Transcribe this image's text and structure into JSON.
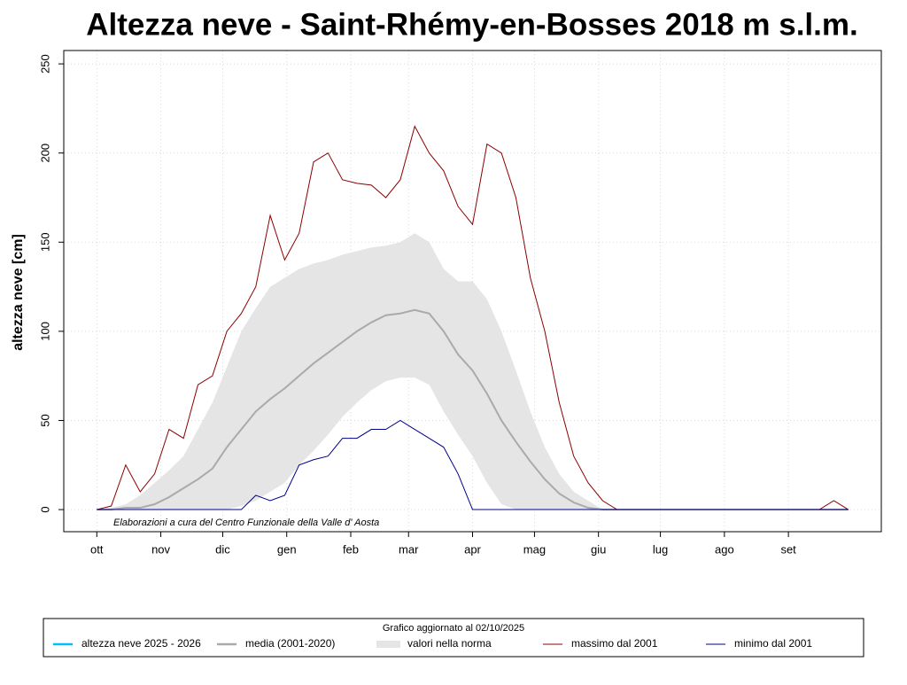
{
  "chart_data": {
    "type": "line",
    "title": "Altezza neve - Saint-Rhémy-en-Bosses 2018 m s.l.m.",
    "y_label": "altezza neve [cm]",
    "annotation": "Elaborazioni a cura del Centro Funzionale della Valle d' Aosta",
    "legend_title": "Grafico aggiornato al 02/10/2025",
    "grid": true,
    "legend": "bottom",
    "xlim": [
      -16,
      380
    ],
    "ylim": [
      -12.4,
      257.5
    ],
    "yticks": [
      0,
      50,
      100,
      150,
      200,
      250
    ],
    "xticks": [
      {
        "value": 0,
        "label": "ott"
      },
      {
        "value": 31,
        "label": "nov"
      },
      {
        "value": 61,
        "label": "dic"
      },
      {
        "value": 92,
        "label": "gen"
      },
      {
        "value": 123,
        "label": "feb"
      },
      {
        "value": 151,
        "label": "mar"
      },
      {
        "value": 182,
        "label": "apr"
      },
      {
        "value": 212,
        "label": "mag"
      },
      {
        "value": 243,
        "label": "giu"
      },
      {
        "value": 273,
        "label": "lug"
      },
      {
        "value": 304,
        "label": "ago"
      },
      {
        "value": 335,
        "label": "set"
      }
    ],
    "x": [
      0,
      7,
      14,
      21,
      28,
      35,
      42,
      49,
      56,
      63,
      70,
      77,
      84,
      91,
      98,
      105,
      112,
      119,
      126,
      133,
      140,
      147,
      154,
      161,
      168,
      175,
      182,
      189,
      196,
      203,
      210,
      217,
      224,
      231,
      238,
      245,
      252,
      259,
      266,
      273,
      280,
      287,
      294,
      301,
      308,
      315,
      322,
      329,
      336,
      343,
      350,
      357,
      364
    ],
    "series": [
      {
        "name": "altezza neve  2025 - 2026",
        "color": "#00bfff",
        "kind": "line",
        "x": [
          0,
          1
        ],
        "values": [
          0,
          0
        ]
      },
      {
        "name": "media (2001-2020)",
        "color": "#aaaaaa",
        "kind": "line",
        "values": [
          0,
          0,
          1,
          1,
          3,
          7,
          12,
          17,
          23,
          35,
          45,
          55,
          62,
          68,
          75,
          82,
          88,
          94,
          100,
          105,
          109,
          110,
          112,
          110,
          100,
          87,
          78,
          65,
          50,
          38,
          27,
          17,
          9,
          4,
          1,
          0,
          0,
          0,
          0,
          0,
          0,
          0,
          0,
          0,
          0,
          0,
          0,
          0,
          0,
          0,
          0,
          0,
          0
        ]
      },
      {
        "name": "valori nella norma",
        "color": "#e5e5e5",
        "kind": "band",
        "low": [
          0,
          0,
          0,
          0,
          0,
          0,
          0,
          0,
          0,
          0,
          2,
          5,
          10,
          15,
          25,
          33,
          42,
          52,
          60,
          67,
          72,
          74,
          74,
          70,
          55,
          42,
          30,
          15,
          3,
          0,
          0,
          0,
          0,
          0,
          0,
          0,
          0,
          0,
          0,
          0,
          0,
          0,
          0,
          0,
          0,
          0,
          0,
          0,
          0,
          0,
          0,
          0,
          0
        ],
        "high": [
          0,
          1,
          3,
          8,
          15,
          22,
          30,
          45,
          60,
          80,
          100,
          113,
          125,
          130,
          135,
          138,
          140,
          143,
          145,
          147,
          148,
          150,
          155,
          150,
          135,
          128,
          128,
          118,
          100,
          78,
          55,
          35,
          20,
          10,
          5,
          0,
          0,
          0,
          0,
          0,
          0,
          0,
          0,
          0,
          0,
          0,
          0,
          0,
          0,
          0,
          0,
          0,
          0
        ]
      },
      {
        "name": "massimo dal 2001",
        "color": "#8b0000",
        "kind": "line",
        "values": [
          0,
          2,
          25,
          10,
          20,
          45,
          40,
          70,
          75,
          100,
          110,
          125,
          165,
          140,
          155,
          195,
          200,
          185,
          183,
          182,
          175,
          185,
          215,
          200,
          190,
          170,
          160,
          205,
          200,
          175,
          130,
          100,
          60,
          30,
          15,
          5,
          0,
          0,
          0,
          0,
          0,
          0,
          0,
          0,
          0,
          0,
          0,
          0,
          0,
          0,
          0,
          5,
          0
        ]
      },
      {
        "name": "minimo dal 2001",
        "color": "#00008b",
        "kind": "line",
        "values": [
          0,
          0,
          0,
          0,
          0,
          0,
          0,
          0,
          0,
          0,
          0,
          8,
          5,
          8,
          25,
          28,
          30,
          40,
          40,
          45,
          45,
          50,
          45,
          40,
          35,
          20,
          0,
          0,
          0,
          0,
          0,
          0,
          0,
          0,
          0,
          0,
          0,
          0,
          0,
          0,
          0,
          0,
          0,
          0,
          0,
          0,
          0,
          0,
          0,
          0,
          0,
          0,
          0
        ]
      }
    ]
  }
}
